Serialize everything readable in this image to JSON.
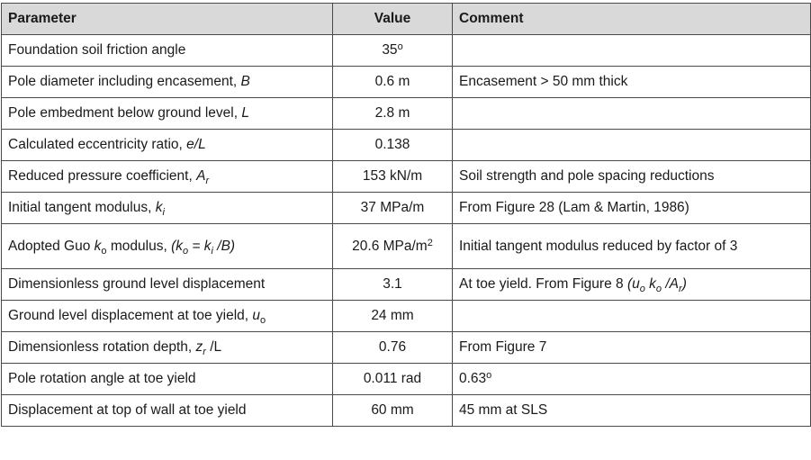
{
  "table": {
    "headers": [
      "Parameter",
      "Value",
      "Comment"
    ],
    "rows": [
      {
        "parameter": "Foundation soil friction angle",
        "value": "35°",
        "comment": ""
      },
      {
        "parameter": "Pole diameter including encasement, B",
        "value": "0.6 m",
        "comment": "Encasement > 50 mm thick"
      },
      {
        "parameter": "Pole embedment below ground level, L",
        "value": "2.8 m",
        "comment": ""
      },
      {
        "parameter": "Calculated eccentricity ratio, e/L",
        "value": "0.138",
        "comment": ""
      },
      {
        "parameter": "Reduced pressure coefficient, Ar",
        "value": "153 kN/m",
        "comment": "Soil strength and pole spacing reductions"
      },
      {
        "parameter": "Initial tangent modulus, ki",
        "value": "37 MPa/m",
        "comment": "From Figure 28 (Lam & Martin, 1986)"
      },
      {
        "parameter": "Adopted Guo ko modulus, (ko = ki /B)",
        "value": "20.6 MPa/m2",
        "comment": "Initial tangent modulus reduced by factor of 3"
      },
      {
        "parameter": "Dimensionless ground level displacement",
        "value": "3.1",
        "comment": "At toe yield. From Figure 8 (uo ko /Ar)"
      },
      {
        "parameter": "Ground level displacement at toe yield, uo",
        "value": "24 mm",
        "comment": ""
      },
      {
        "parameter": "Dimensionless rotation depth, zr /L",
        "value": "0.76",
        "comment": "From Figure 7"
      },
      {
        "parameter": "Pole rotation angle at toe yield",
        "value": "0.011 rad",
        "comment": "0.63°"
      },
      {
        "parameter": "Displacement at top of wall at toe yield",
        "value": "60 mm",
        "comment": "45 mm at SLS"
      }
    ]
  }
}
